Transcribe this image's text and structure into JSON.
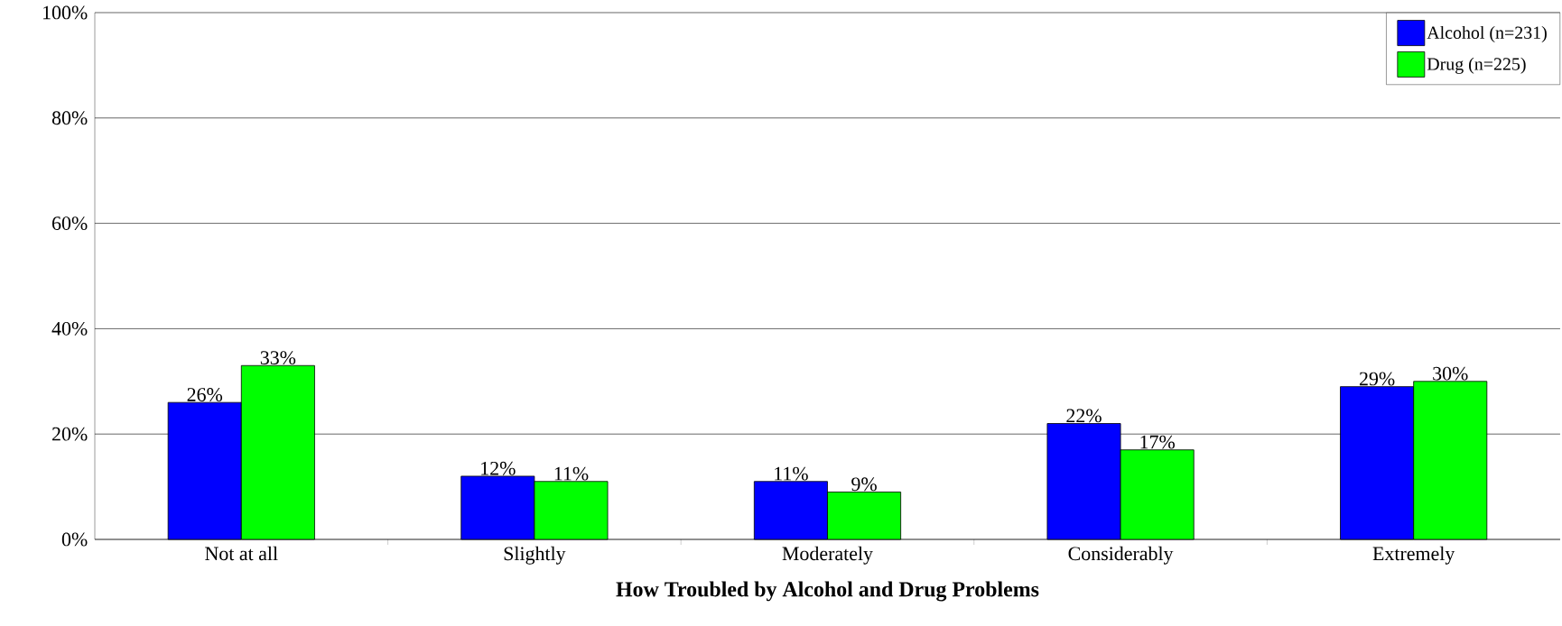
{
  "chart_data": {
    "type": "bar",
    "xlabel": "How Troubled by Alcohol and Drug Problems",
    "categories": [
      "Not at all",
      "Slightly",
      "Moderately",
      "Considerably",
      "Extremely"
    ],
    "series": [
      {
        "name": "Alcohol (n=231)",
        "color": "#0000ff",
        "values": [
          26,
          12,
          11,
          22,
          29
        ],
        "value_labels": [
          "26%",
          "12%",
          "11%",
          "22%",
          "29%"
        ]
      },
      {
        "name": "Drug (n=225)",
        "color": "#00ff00",
        "values": [
          33,
          11,
          9,
          17,
          30
        ],
        "value_labels": [
          "33%",
          "11%",
          "9%",
          "17%",
          "30%"
        ]
      }
    ],
    "ylim": [
      0,
      100
    ],
    "yticks": [
      {
        "value": 0,
        "label": "0%"
      },
      {
        "value": 20,
        "label": "20%"
      },
      {
        "value": 40,
        "label": "40%"
      },
      {
        "value": 60,
        "label": "60%"
      },
      {
        "value": 80,
        "label": "80%"
      },
      {
        "value": 100,
        "label": "100%"
      }
    ],
    "grid": "y",
    "legend": "top right"
  }
}
